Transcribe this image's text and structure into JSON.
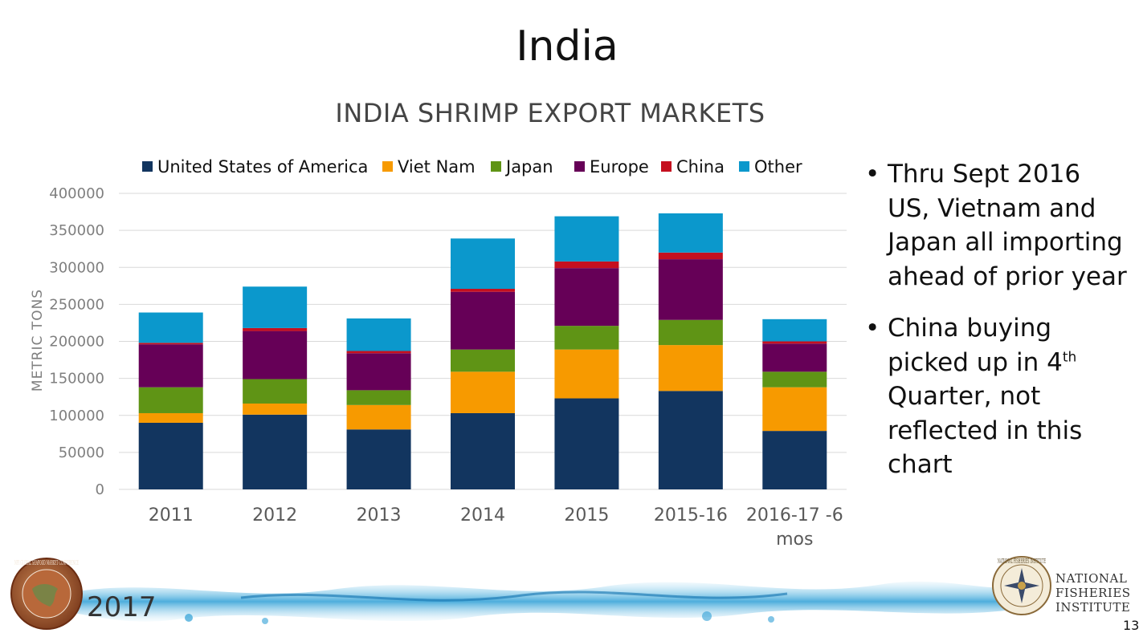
{
  "slide": {
    "title": "India",
    "bullets": [
      {
        "parts": [
          "Thru Sept 2016 US, Vietnam and Japan all importing ahead of prior year"
        ]
      },
      {
        "parts": [
          "China buying picked up in 4",
          "th",
          " Quarter, not reflected in this chart"
        ]
      }
    ],
    "page_number": "13"
  },
  "footer": {
    "year": "2017",
    "left_seal_text": "NFI GLOBAL SEAFOOD MARKET CONFERENCE",
    "org_lines": [
      "NATIONAL",
      "FISHERIES",
      "INSTITUTE"
    ],
    "right_seal_text": "NATIONAL FISHERIES INSTITUTE"
  },
  "chart_data": {
    "type": "bar",
    "stacked": true,
    "title": "INDIA SHRIMP EXPORT MARKETS",
    "xlabel": "",
    "ylabel": "METRIC TONS",
    "ylim": [
      0,
      400000
    ],
    "yticks": [
      0,
      50000,
      100000,
      150000,
      200000,
      250000,
      300000,
      350000,
      400000
    ],
    "grid": true,
    "legend_position": "top",
    "categories": [
      [
        "2011"
      ],
      [
        "2012"
      ],
      [
        "2013"
      ],
      [
        "2014"
      ],
      [
        "2015"
      ],
      [
        "2015-16"
      ],
      [
        "2016-17 -6",
        "mos"
      ]
    ],
    "series": [
      {
        "name": "United States of America",
        "color": "#12355f",
        "values": [
          90000,
          101000,
          81000,
          103000,
          123000,
          133000,
          79000
        ]
      },
      {
        "name": "Viet Nam",
        "color": "#f79a00",
        "values": [
          13000,
          15000,
          33000,
          56000,
          66000,
          62000,
          59000
        ]
      },
      {
        "name": "Japan",
        "color": "#5f9415",
        "values": [
          35000,
          33000,
          20000,
          30000,
          32000,
          34000,
          21000
        ]
      },
      {
        "name": "Europe",
        "color": "#660057",
        "values": [
          58000,
          65000,
          50000,
          78000,
          78000,
          82000,
          38000
        ]
      },
      {
        "name": "China",
        "color": "#c5101f",
        "values": [
          2000,
          4000,
          3000,
          4000,
          9000,
          9000,
          3000
        ]
      },
      {
        "name": "Other",
        "color": "#0b98cc",
        "values": [
          41000,
          56000,
          44000,
          68000,
          61000,
          53000,
          30000
        ]
      }
    ]
  }
}
